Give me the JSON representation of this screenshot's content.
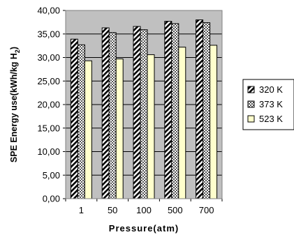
{
  "chart_data": {
    "type": "bar",
    "title": "",
    "xlabel": "Pressure(atm)",
    "ylabel_main": "SPE Energy use(kWh/kg H",
    "ylabel_sub": "2",
    "ylabel_close": ")",
    "categories": [
      "1",
      "50",
      "100",
      "500",
      "700"
    ],
    "ylim": [
      0,
      40
    ],
    "yticks": [
      "0,00",
      "5,00",
      "10,00",
      "15,00",
      "20,00",
      "25,00",
      "30,00",
      "35,00",
      "40,00"
    ],
    "grid": true,
    "legend_position": "right",
    "plot_background": "#c0c0c0",
    "series": [
      {
        "name": "320 K",
        "pattern": "diagonal",
        "values": [
          33.9,
          36.3,
          36.6,
          37.7,
          38.0
        ]
      },
      {
        "name": "373 K",
        "pattern": "crosshatch",
        "values": [
          32.7,
          35.3,
          35.9,
          37.2,
          37.4
        ]
      },
      {
        "name": "523 K",
        "pattern": "solid-lightyellow",
        "fill": "#ffffcc",
        "values": [
          29.3,
          29.7,
          30.6,
          32.2,
          32.6
        ]
      }
    ]
  }
}
